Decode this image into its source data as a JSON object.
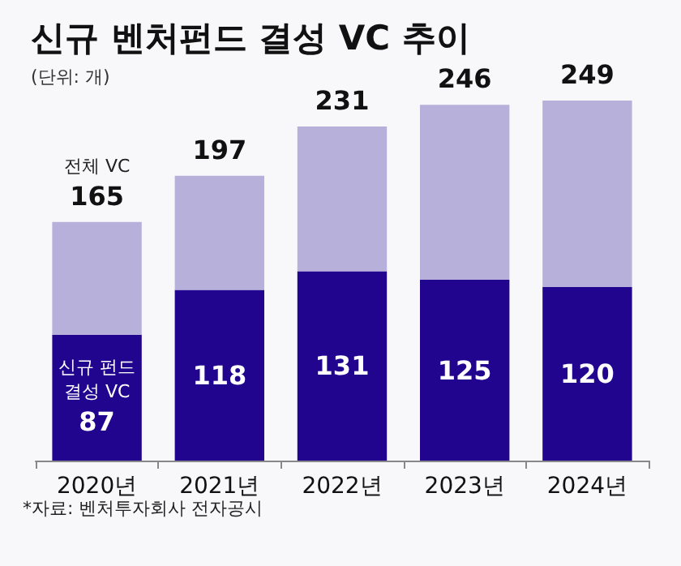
{
  "chart_data": {
    "type": "bar",
    "title": "신규 벤처펀드 결성 VC 추이",
    "subtitle": "(단위: 개)",
    "categories": [
      "2020년",
      "2021년",
      "2022년",
      "2023년",
      "2024년"
    ],
    "stacked": true,
    "series": [
      {
        "name": "신규 펀드 결성 VC",
        "color": "#22058f",
        "values": [
          87,
          118,
          131,
          125,
          120
        ],
        "value_labels": [
          "87",
          "118",
          "131",
          "125",
          "120"
        ]
      },
      {
        "name": "전체 VC",
        "color": "#b6b0db",
        "values": [
          78,
          79,
          100,
          121,
          129
        ]
      }
    ],
    "totals": [
      "165",
      "197",
      "231",
      "246",
      "249"
    ],
    "tick_labels": "x",
    "grid": false,
    "annotations": [
      "*자료: 벤처투자회사 전자공시"
    ]
  }
}
